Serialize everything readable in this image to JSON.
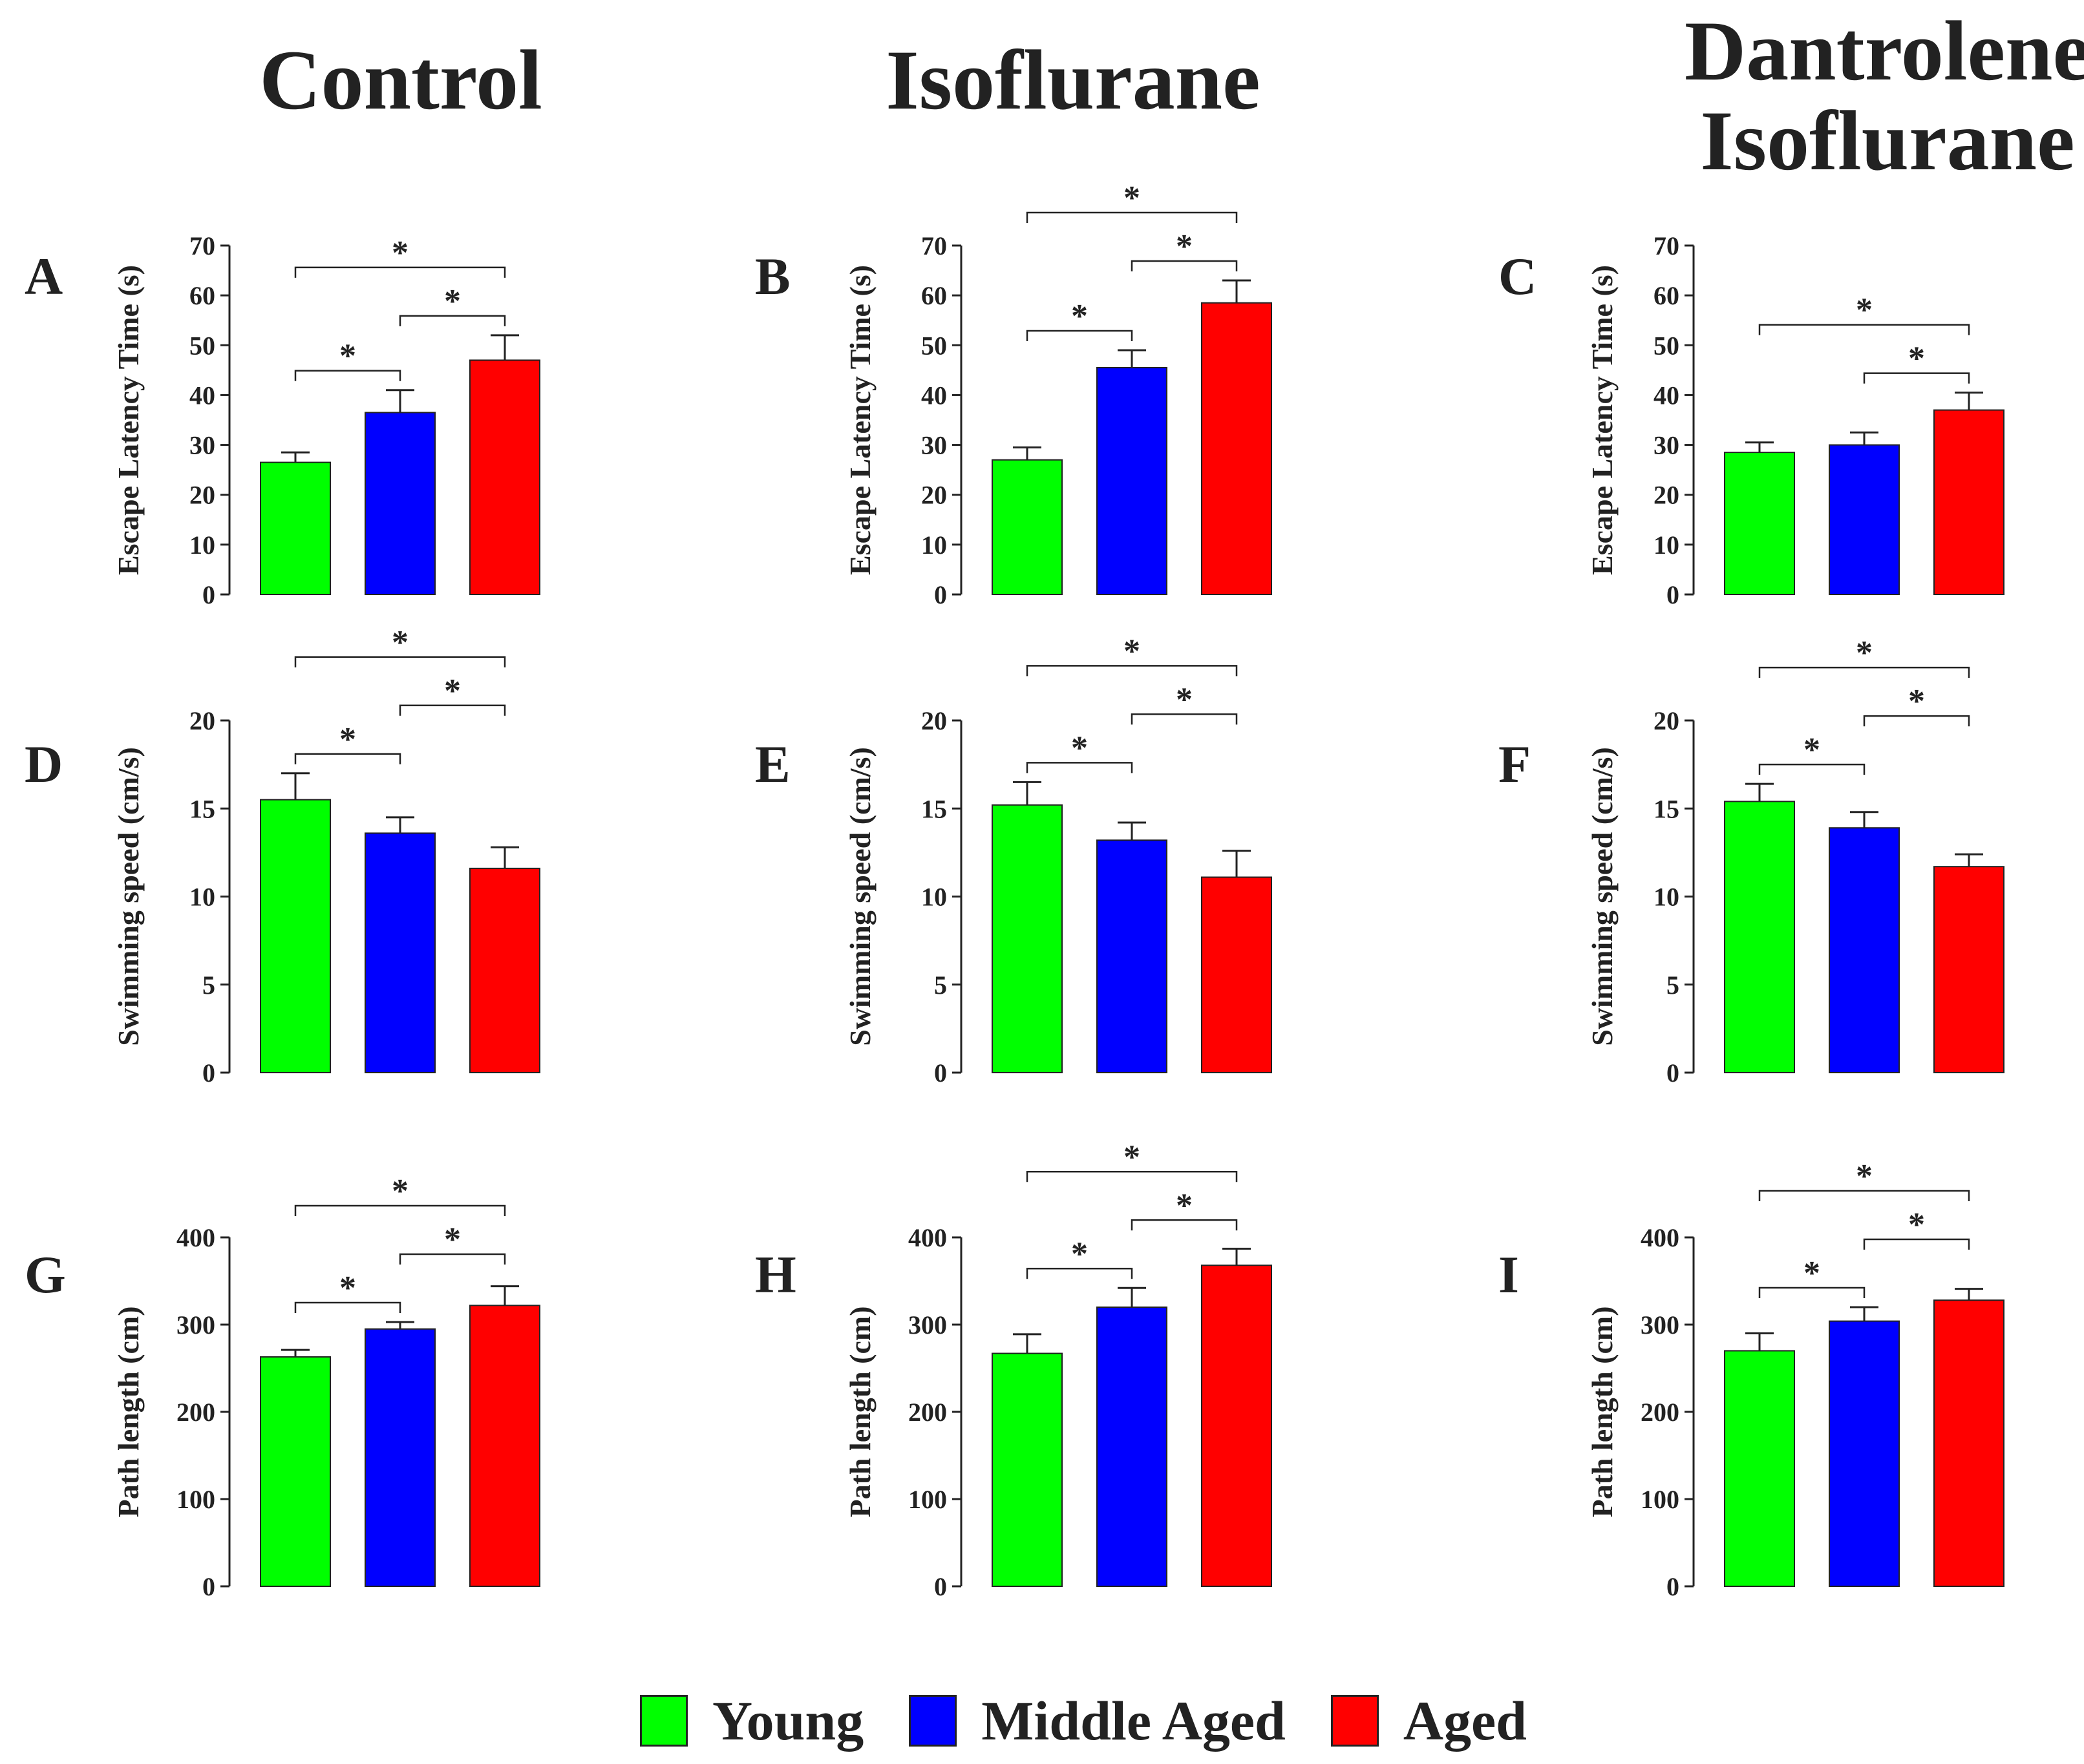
{
  "columns": [
    {
      "title": "Control"
    },
    {
      "title": "Isoflurane"
    },
    {
      "title": "Dantrolene\nIsoflurane"
    }
  ],
  "legend": [
    {
      "label": "Young",
      "color": "#00ff00"
    },
    {
      "label": "Middle Aged",
      "color": "#0000ff"
    },
    {
      "label": "Aged",
      "color": "#ff0000"
    }
  ],
  "colors": {
    "young": "#00ff00",
    "middle_aged": "#0000ff",
    "aged": "#ff0000",
    "axis": "#222222"
  },
  "sig_marker": "*",
  "chart_data": [
    {
      "panel": "A",
      "type": "bar",
      "condition": "Control",
      "ylabel": "Escape Latency Time (s)",
      "categories": [
        "Young",
        "Middle Aged",
        "Aged"
      ],
      "values": [
        26.5,
        36.5,
        47
      ],
      "errors": [
        2,
        4.5,
        5
      ],
      "ylim": [
        0,
        70
      ],
      "yticks": [
        0,
        10,
        20,
        30,
        40,
        50,
        60,
        70
      ],
      "significance": [
        [
          0,
          1
        ],
        [
          1,
          2
        ],
        [
          0,
          2
        ]
      ]
    },
    {
      "panel": "B",
      "type": "bar",
      "condition": "Isoflurane",
      "ylabel": "Escape Latency Time (s)",
      "categories": [
        "Young",
        "Middle Aged",
        "Aged"
      ],
      "values": [
        27,
        45.5,
        58.5
      ],
      "errors": [
        2.5,
        3.5,
        4.5
      ],
      "ylim": [
        0,
        70
      ],
      "yticks": [
        0,
        10,
        20,
        30,
        40,
        50,
        60,
        70
      ],
      "significance": [
        [
          0,
          1
        ],
        [
          1,
          2
        ],
        [
          0,
          2
        ]
      ]
    },
    {
      "panel": "C",
      "type": "bar",
      "condition": "Dantrolene Isoflurane",
      "ylabel": "Escape Latency Time (s)",
      "categories": [
        "Young",
        "Middle Aged",
        "Aged"
      ],
      "values": [
        28.5,
        30,
        37
      ],
      "errors": [
        2,
        2.5,
        3.5
      ],
      "ylim": [
        0,
        70
      ],
      "yticks": [
        0,
        10,
        20,
        30,
        40,
        50,
        60,
        70
      ],
      "significance": [
        [
          1,
          2
        ],
        [
          0,
          2
        ]
      ]
    },
    {
      "panel": "D",
      "type": "bar",
      "condition": "Control",
      "ylabel": "Swimming speed (cm/s)",
      "categories": [
        "Young",
        "Middle Aged",
        "Aged"
      ],
      "values": [
        15.5,
        13.6,
        11.6
      ],
      "errors": [
        1.5,
        0.9,
        1.2
      ],
      "ylim": [
        0,
        20
      ],
      "yticks": [
        0,
        5,
        10,
        15,
        20
      ],
      "significance": [
        [
          0,
          1
        ],
        [
          1,
          2
        ],
        [
          0,
          2
        ]
      ]
    },
    {
      "panel": "E",
      "type": "bar",
      "condition": "Isoflurane",
      "ylabel": "Swimming speed (cm/s)",
      "categories": [
        "Young",
        "Middle Aged",
        "Aged"
      ],
      "values": [
        15.2,
        13.2,
        11.1
      ],
      "errors": [
        1.3,
        1.0,
        1.5
      ],
      "ylim": [
        0,
        20
      ],
      "yticks": [
        0,
        5,
        10,
        15,
        20
      ],
      "significance": [
        [
          0,
          1
        ],
        [
          1,
          2
        ],
        [
          0,
          2
        ]
      ]
    },
    {
      "panel": "F",
      "type": "bar",
      "condition": "Dantrolene Isoflurane",
      "ylabel": "Swimming speed (cm/s)",
      "categories": [
        "Young",
        "Middle Aged",
        "Aged"
      ],
      "values": [
        15.4,
        13.9,
        11.7
      ],
      "errors": [
        1.0,
        0.9,
        0.7
      ],
      "ylim": [
        0,
        20
      ],
      "yticks": [
        0,
        5,
        10,
        15,
        20
      ],
      "significance": [
        [
          0,
          1
        ],
        [
          1,
          2
        ],
        [
          0,
          2
        ]
      ]
    },
    {
      "panel": "G",
      "type": "bar",
      "condition": "Control",
      "ylabel": "Path length (cm)",
      "categories": [
        "Young",
        "Middle Aged",
        "Aged"
      ],
      "values": [
        263,
        295,
        322
      ],
      "errors": [
        8,
        8,
        22
      ],
      "ylim": [
        0,
        400
      ],
      "yticks": [
        0,
        100,
        200,
        300,
        400
      ],
      "significance": [
        [
          0,
          1
        ],
        [
          1,
          2
        ],
        [
          0,
          2
        ]
      ]
    },
    {
      "panel": "H",
      "type": "bar",
      "condition": "Isoflurane",
      "ylabel": "Path length (cm)",
      "categories": [
        "Young",
        "Middle Aged",
        "Aged"
      ],
      "values": [
        267,
        320,
        368
      ],
      "errors": [
        22,
        22,
        19
      ],
      "ylim": [
        0,
        400
      ],
      "yticks": [
        0,
        100,
        200,
        300,
        400
      ],
      "significance": [
        [
          0,
          1
        ],
        [
          1,
          2
        ],
        [
          0,
          2
        ]
      ]
    },
    {
      "panel": "I",
      "type": "bar",
      "condition": "Dantrolene Isoflurane",
      "ylabel": "Path length (cm)",
      "categories": [
        "Young",
        "Middle Aged",
        "Aged"
      ],
      "values": [
        270,
        304,
        328
      ],
      "errors": [
        20,
        16,
        13
      ],
      "ylim": [
        0,
        400
      ],
      "yticks": [
        0,
        100,
        200,
        300,
        400
      ],
      "significance": [
        [
          0,
          1
        ],
        [
          1,
          2
        ],
        [
          0,
          2
        ]
      ]
    }
  ]
}
